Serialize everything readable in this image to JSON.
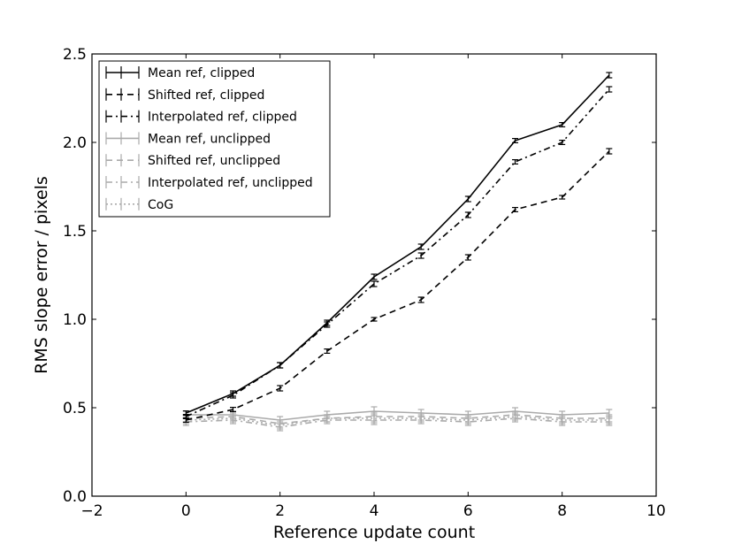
{
  "chart_data": {
    "type": "line",
    "xlabel": "Reference update count",
    "ylabel": "RMS slope error / pixels",
    "xlim": [
      -2,
      10
    ],
    "ylim": [
      0.0,
      2.5
    ],
    "x_ticks": [
      "−2",
      "0",
      "2",
      "4",
      "6",
      "8",
      "10"
    ],
    "x_tick_values": [
      -2,
      0,
      2,
      4,
      6,
      8,
      10
    ],
    "y_ticks": [
      "0.0",
      "0.5",
      "1.0",
      "1.5",
      "2.0",
      "2.5"
    ],
    "y_tick_values": [
      0.0,
      0.5,
      1.0,
      1.5,
      2.0,
      2.5
    ],
    "grid": false,
    "legend_position": "top-left",
    "x": [
      0,
      1,
      2,
      3,
      4,
      5,
      6,
      7,
      8,
      9
    ],
    "series": [
      {
        "name": "Mean ref, clipped",
        "color": "#000000",
        "dash": "solid",
        "values": [
          0.47,
          0.58,
          0.74,
          0.98,
          1.24,
          1.41,
          1.68,
          2.01,
          2.1,
          2.38
        ],
        "errors": [
          0.012,
          0.015,
          0.015,
          0.015,
          0.015,
          0.015,
          0.015,
          0.012,
          0.012,
          0.015
        ]
      },
      {
        "name": "Shifted ref, clipped",
        "color": "#000000",
        "dash": "dashed",
        "values": [
          0.43,
          0.49,
          0.61,
          0.82,
          1.0,
          1.11,
          1.35,
          1.62,
          1.69,
          1.95
        ],
        "errors": [
          0.012,
          0.012,
          0.015,
          0.012,
          0.01,
          0.015,
          0.015,
          0.012,
          0.01,
          0.015
        ]
      },
      {
        "name": "Interpolated ref, clipped",
        "color": "#000000",
        "dash": "dashdot",
        "values": [
          0.45,
          0.57,
          0.74,
          0.97,
          1.2,
          1.36,
          1.59,
          1.89,
          2.0,
          2.3
        ],
        "errors": [
          0.012,
          0.015,
          0.015,
          0.015,
          0.015,
          0.015,
          0.015,
          0.012,
          0.012,
          0.015
        ]
      },
      {
        "name": "Mean ref, unclipped",
        "color": "#aaaaaa",
        "dash": "solid",
        "values": [
          0.46,
          0.46,
          0.43,
          0.46,
          0.48,
          0.47,
          0.46,
          0.48,
          0.46,
          0.47
        ],
        "errors": [
          0.02,
          0.02,
          0.02,
          0.02,
          0.025,
          0.02,
          0.02,
          0.02,
          0.02,
          0.02
        ]
      },
      {
        "name": "Shifted ref, unclipped",
        "color": "#aaaaaa",
        "dash": "dashed",
        "values": [
          0.44,
          0.45,
          0.41,
          0.44,
          0.45,
          0.45,
          0.44,
          0.46,
          0.44,
          0.44
        ],
        "errors": [
          0.02,
          0.02,
          0.02,
          0.02,
          0.025,
          0.02,
          0.02,
          0.02,
          0.02,
          0.02
        ]
      },
      {
        "name": "Interpolated ref, unclipped",
        "color": "#aaaaaa",
        "dash": "dashdot",
        "values": [
          0.42,
          0.43,
          0.39,
          0.43,
          0.43,
          0.43,
          0.42,
          0.44,
          0.42,
          0.42
        ],
        "errors": [
          0.02,
          0.02,
          0.02,
          0.02,
          0.025,
          0.02,
          0.02,
          0.02,
          0.02,
          0.02
        ]
      },
      {
        "name": "CoG",
        "color": "#aaaaaa",
        "dash": "dotted",
        "values": [
          0.43,
          0.44,
          0.4,
          0.44,
          0.44,
          0.44,
          0.43,
          0.45,
          0.43,
          0.43
        ],
        "errors": [
          0.02,
          0.02,
          0.02,
          0.02,
          0.025,
          0.02,
          0.02,
          0.02,
          0.02,
          0.02
        ]
      }
    ]
  }
}
